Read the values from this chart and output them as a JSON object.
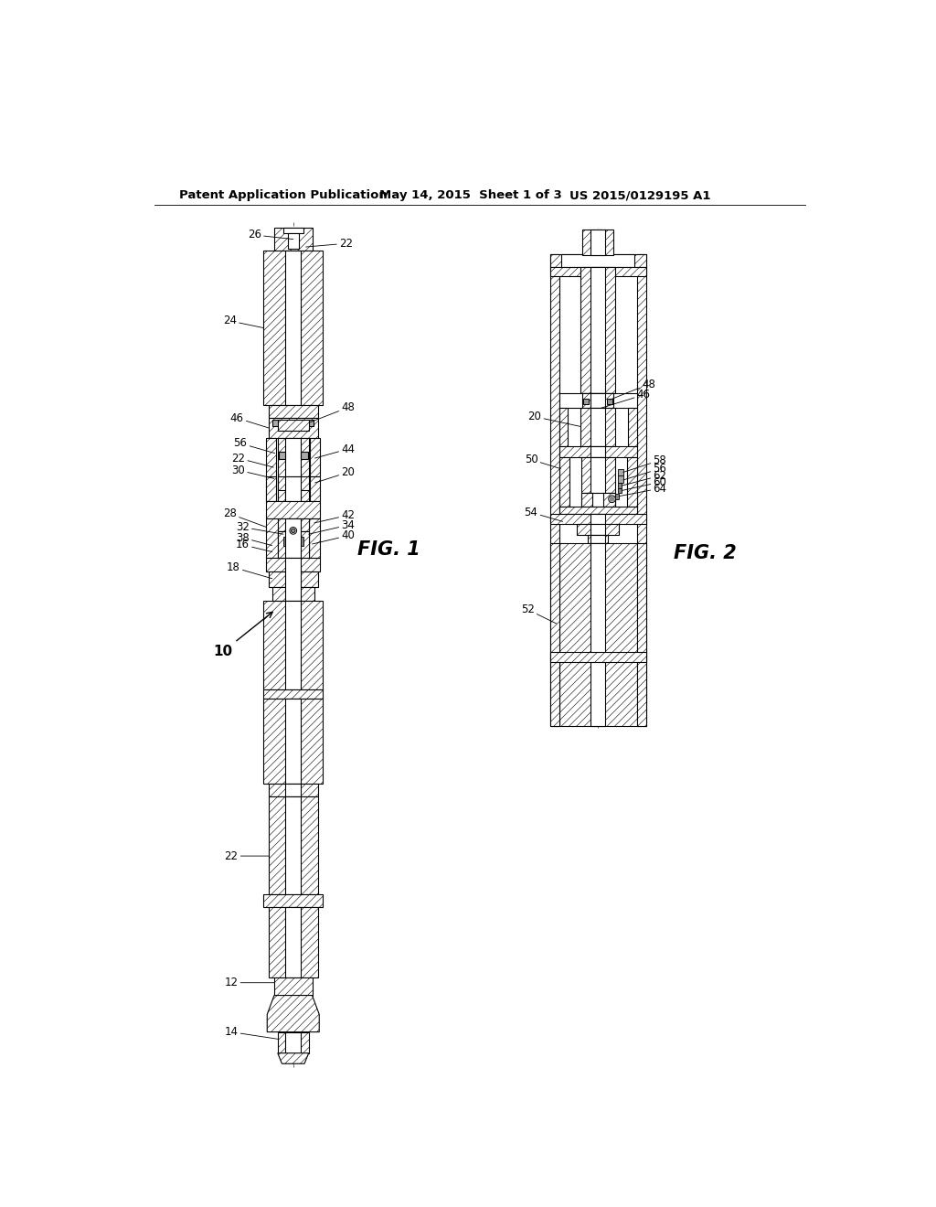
{
  "bg_color": "#ffffff",
  "header_text": "Patent Application Publication",
  "header_date": "May 14, 2015  Sheet 1 of 3",
  "header_patent": "US 2015/0129195 A1",
  "fig1_label": "FIG. 1",
  "fig2_label": "FIG. 2",
  "line_color": "#000000",
  "lw": 0.8,
  "lw_thick": 1.5,
  "hatch_pattern": "////",
  "hatch_lw": 0.4
}
